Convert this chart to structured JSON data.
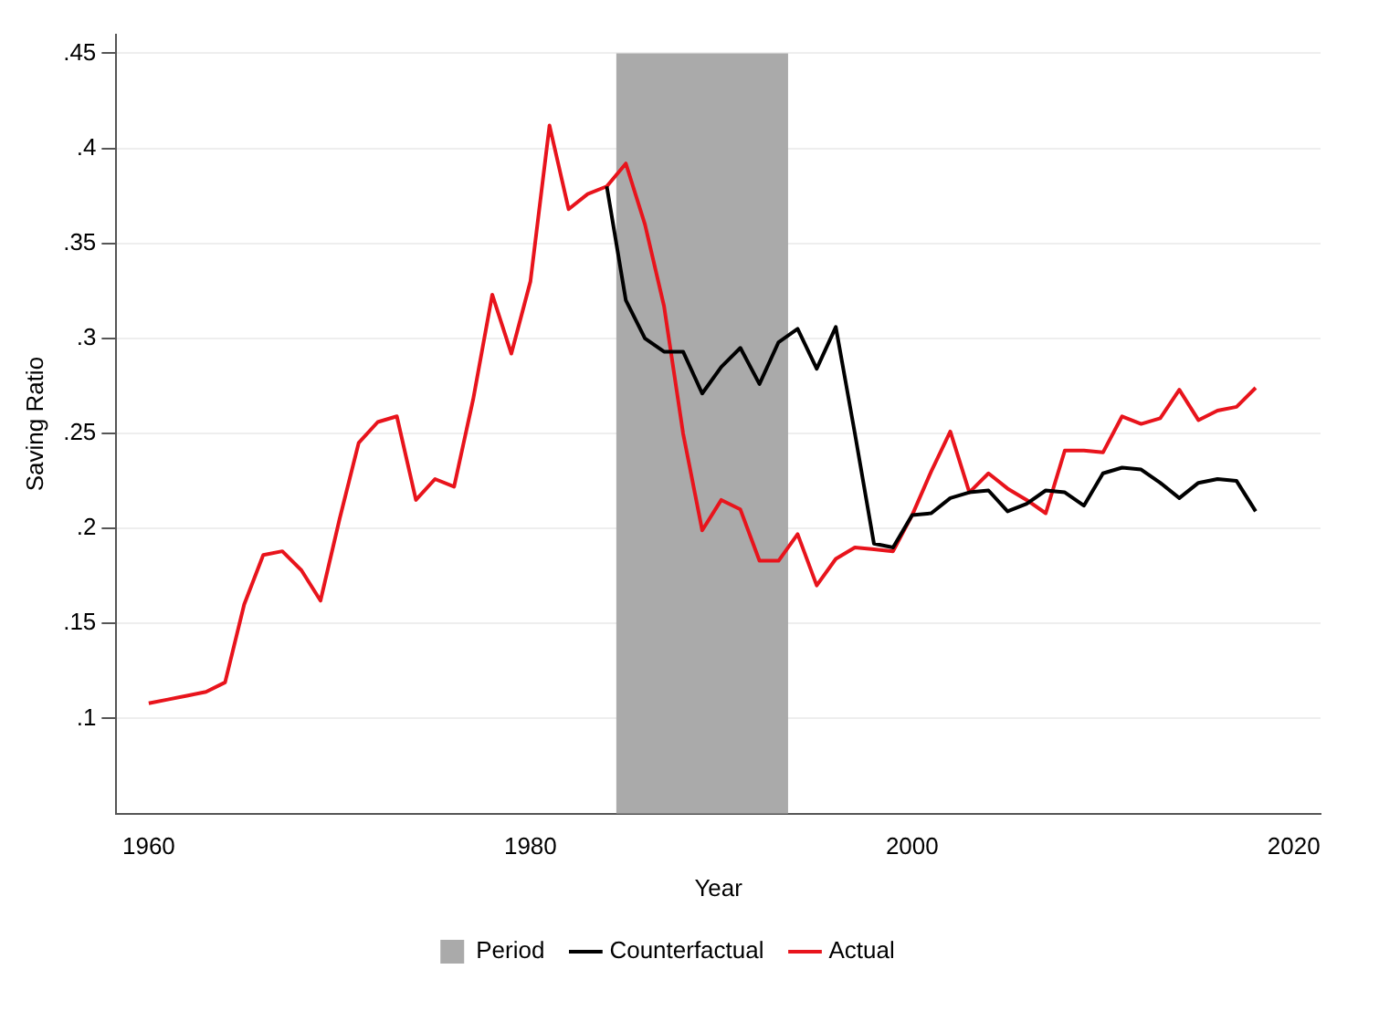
{
  "chart_data": {
    "type": "line",
    "xlabel": "Year",
    "ylabel": "Saving Ratio",
    "xlim": [
      1958.3,
      2021.4
    ],
    "xticks": [
      1960,
      1980,
      2000,
      2020
    ],
    "ylim": [
      0.05,
      0.46
    ],
    "yticks": [
      {
        "value": 0.1,
        "label": ".1"
      },
      {
        "value": 0.15,
        "label": ".15"
      },
      {
        "value": 0.2,
        "label": ".2"
      },
      {
        "value": 0.25,
        "label": ".25"
      },
      {
        "value": 0.3,
        "label": ".3"
      },
      {
        "value": 0.35,
        "label": ".35"
      },
      {
        "value": 0.4,
        "label": ".4"
      },
      {
        "value": 0.45,
        "label": ".45"
      }
    ],
    "grid": "y",
    "legend": "bottom",
    "line_style": "solid",
    "bands": [
      {
        "axis": "x",
        "from": 1984.5,
        "to": 1993.5,
        "label": "Period",
        "color": "#aaaaaa"
      }
    ],
    "series": [
      {
        "name": "Counterfactual",
        "color": "#000000",
        "x": [
          1984,
          1985,
          1986,
          1987,
          1988,
          1989,
          1990,
          1991,
          1992,
          1993,
          1994,
          1995,
          1996,
          1997,
          1998,
          1999,
          2000,
          2001,
          2002,
          2003,
          2004,
          2005,
          2006,
          2007,
          2008,
          2009,
          2010,
          2011,
          2012,
          2013,
          2014,
          2015,
          2016,
          2017,
          2018
        ],
        "values": [
          0.38,
          0.32,
          0.3,
          0.293,
          0.293,
          0.271,
          0.285,
          0.295,
          0.276,
          0.298,
          0.305,
          0.284,
          0.306,
          0.25,
          0.192,
          0.19,
          0.207,
          0.208,
          0.216,
          0.219,
          0.22,
          0.209,
          0.213,
          0.22,
          0.219,
          0.212,
          0.229,
          0.232,
          0.231,
          0.224,
          0.216,
          0.224,
          0.226,
          0.225,
          0.209
        ]
      },
      {
        "name": "Actual",
        "color": "#e8141c",
        "x": [
          1960,
          1961,
          1962,
          1963,
          1964,
          1965,
          1966,
          1967,
          1968,
          1969,
          1970,
          1971,
          1972,
          1973,
          1974,
          1975,
          1976,
          1977,
          1978,
          1979,
          1980,
          1981,
          1982,
          1983,
          1984,
          1985,
          1986,
          1987,
          1988,
          1989,
          1990,
          1991,
          1992,
          1993,
          1994,
          1995,
          1996,
          1997,
          1998,
          1999,
          2000,
          2001,
          2002,
          2003,
          2004,
          2005,
          2006,
          2007,
          2008,
          2009,
          2010,
          2011,
          2012,
          2013,
          2014,
          2015,
          2016,
          2017,
          2018
        ],
        "values": [
          0.108,
          0.11,
          0.112,
          0.114,
          0.119,
          0.16,
          0.186,
          0.188,
          0.178,
          0.162,
          0.205,
          0.245,
          0.256,
          0.259,
          0.215,
          0.226,
          0.222,
          0.268,
          0.323,
          0.292,
          0.33,
          0.412,
          0.368,
          0.376,
          0.38,
          0.392,
          0.36,
          0.317,
          0.25,
          0.199,
          0.215,
          0.21,
          0.183,
          0.183,
          0.197,
          0.17,
          0.184,
          0.19,
          0.189,
          0.188,
          0.207,
          0.23,
          0.251,
          0.219,
          0.229,
          0.221,
          0.215,
          0.208,
          0.241,
          0.241,
          0.24,
          0.259,
          0.255,
          0.258,
          0.273,
          0.257,
          0.262,
          0.264,
          0.274
        ]
      }
    ]
  }
}
